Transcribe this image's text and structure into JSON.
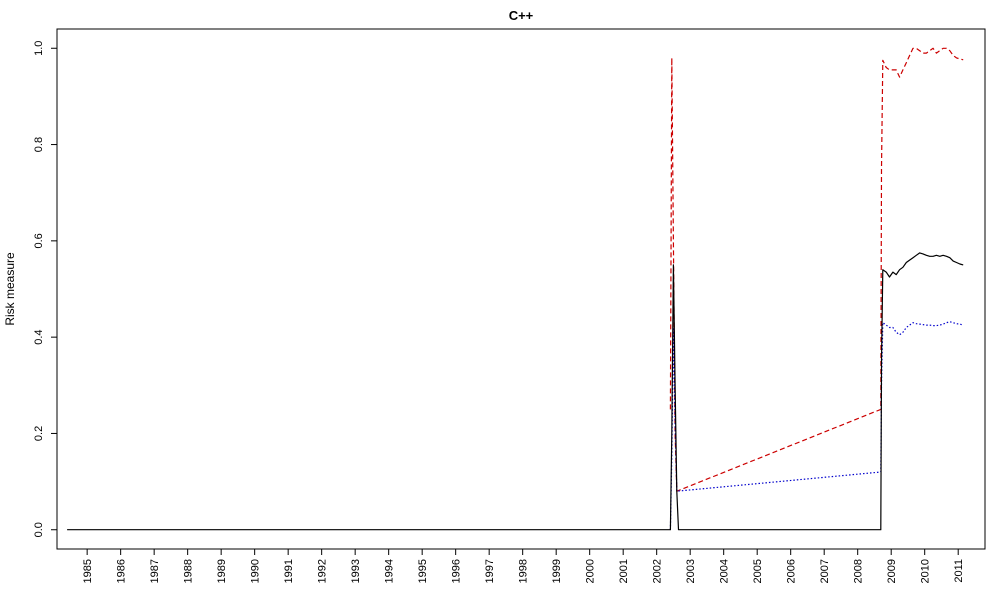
{
  "chart_data": {
    "type": "line",
    "title": "C++",
    "xlabel": "",
    "ylabel": "Risk measure",
    "xlim": [
      1984.1,
      2011.8
    ],
    "ylim": [
      -0.04,
      1.04
    ],
    "y_ticks": [
      0.0,
      0.2,
      0.4,
      0.6,
      0.8,
      1.0
    ],
    "y_tick_labels": [
      "0.0",
      "0.2",
      "0.4",
      "0.6",
      "0.8",
      "1.0"
    ],
    "x_ticks": [
      1985,
      1986,
      1987,
      1988,
      1989,
      1990,
      1991,
      1992,
      1993,
      1994,
      1995,
      1996,
      1997,
      1998,
      1999,
      2000,
      2001,
      2002,
      2003,
      2004,
      2005,
      2006,
      2007,
      2008,
      2009,
      2010,
      2011
    ],
    "x_tick_labels": [
      "1985",
      "1986",
      "1987",
      "1988",
      "1989",
      "1990",
      "1991",
      "1992",
      "1993",
      "1994",
      "1995",
      "1996",
      "1997",
      "1998",
      "1999",
      "2000",
      "2001",
      "2002",
      "2003",
      "2004",
      "2005",
      "2006",
      "2007",
      "2008",
      "2009",
      "2010",
      "2011"
    ],
    "grid": false,
    "legend": false,
    "series": [
      {
        "color": "#000000",
        "dash": "solid",
        "x": [
          1984.4,
          2002.41,
          2002.45,
          2002.5,
          2002.55,
          2002.6,
          2002.65,
          2008.69,
          2008.71,
          2008.75,
          2008.85,
          2008.95,
          2009.05,
          2009.15,
          2009.25,
          2009.35,
          2009.45,
          2009.55,
          2009.65,
          2009.75,
          2009.85,
          2009.95,
          2010.05,
          2010.15,
          2010.25,
          2010.35,
          2010.45,
          2010.55,
          2010.65,
          2010.75,
          2010.85,
          2010.95,
          2011.05,
          2011.15
        ],
        "y": [
          0,
          0,
          0.2,
          0.55,
          0.3,
          0.08,
          0,
          0,
          0.35,
          0.54,
          0.535,
          0.525,
          0.535,
          0.53,
          0.54,
          0.545,
          0.555,
          0.56,
          0.565,
          0.57,
          0.575,
          0.573,
          0.57,
          0.568,
          0.568,
          0.57,
          0.568,
          0.57,
          0.568,
          0.565,
          0.558,
          0.555,
          0.552,
          0.55
        ]
      },
      {
        "color": "#0000cc",
        "dash": "dotted",
        "x": [
          2002.41,
          2002.45,
          2002.5,
          2002.55,
          2002.6,
          2008.69,
          2008.71,
          2008.75,
          2008.85,
          2008.95,
          2009.05,
          2009.15,
          2009.25,
          2009.35,
          2009.45,
          2009.55,
          2009.65,
          2009.75,
          2009.85,
          2009.95,
          2010.05,
          2010.15,
          2010.25,
          2010.35,
          2010.45,
          2010.55,
          2010.65,
          2010.75,
          2010.85,
          2010.95,
          2011.05,
          2011.15
        ],
        "y": [
          0,
          0.15,
          0.42,
          0.22,
          0.08,
          0.12,
          0.3,
          0.43,
          0.425,
          0.42,
          0.42,
          0.41,
          0.405,
          0.41,
          0.42,
          0.425,
          0.43,
          0.428,
          0.427,
          0.426,
          0.425,
          0.425,
          0.424,
          0.424,
          0.425,
          0.427,
          0.43,
          0.432,
          0.43,
          0.428,
          0.427,
          0.425
        ]
      },
      {
        "color": "#cc0000",
        "dash": "dashed",
        "x": [
          2002.41,
          2002.45,
          2002.5,
          2002.55,
          2002.6,
          2008.69,
          2008.71,
          2008.75,
          2008.85,
          2008.95,
          2009.05,
          2009.15,
          2009.25,
          2009.35,
          2009.45,
          2009.55,
          2009.65,
          2009.75,
          2009.85,
          2009.95,
          2010.05,
          2010.15,
          2010.25,
          2010.35,
          2010.45,
          2010.55,
          2010.65,
          2010.75,
          2010.85,
          2010.95,
          2011.05,
          2011.15
        ],
        "y": [
          0.25,
          0.98,
          0.6,
          0.2,
          0.08,
          0.25,
          0.75,
          0.975,
          0.96,
          0.955,
          0.955,
          0.955,
          0.94,
          0.955,
          0.97,
          0.985,
          1.0,
          1.0,
          0.995,
          0.99,
          0.99,
          0.995,
          1.0,
          0.99,
          0.995,
          1.0,
          1.0,
          0.995,
          0.985,
          0.98,
          0.978,
          0.976
        ]
      }
    ]
  }
}
